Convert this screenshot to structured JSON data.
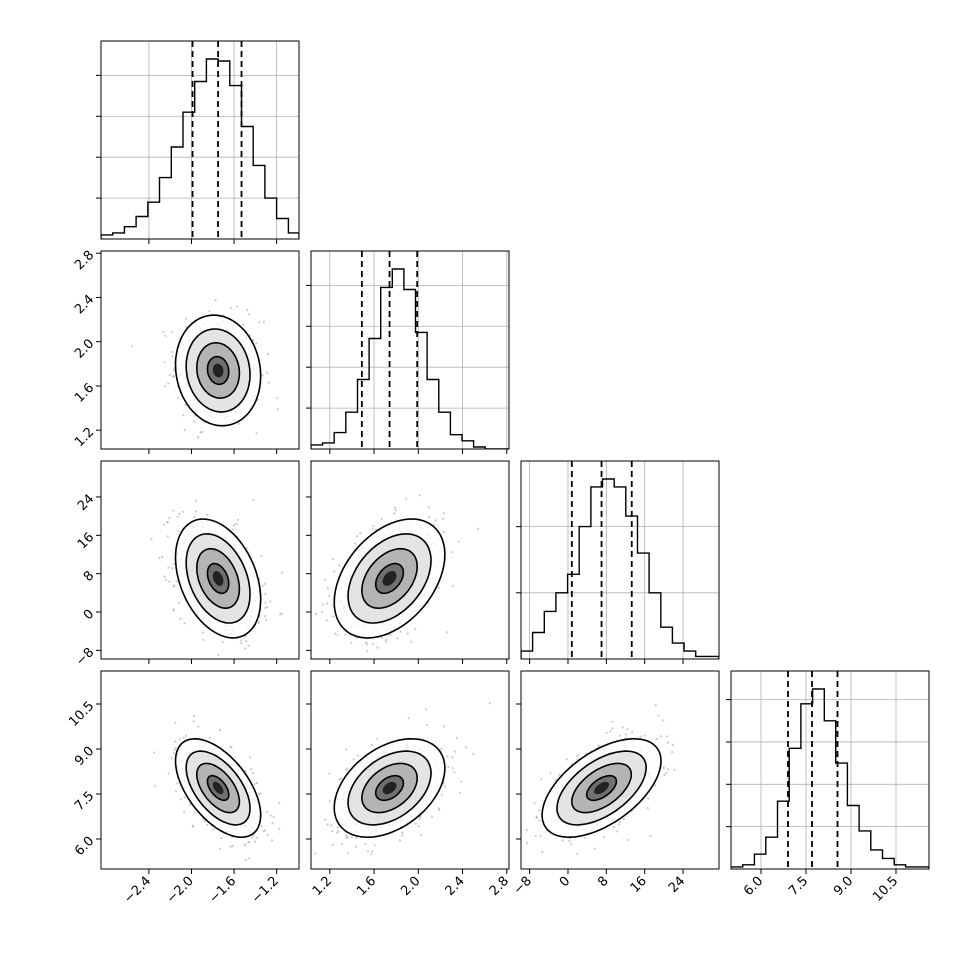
{
  "chart_data": {
    "type": "corner",
    "title": "",
    "parameters": [
      {
        "name": "",
        "range": [
          -2.85,
          -0.99
        ],
        "ticks": [
          -2.4,
          -2.0,
          -1.6,
          -1.2
        ],
        "tick_labels": [
          "−2.4",
          "−2.0",
          "−1.6",
          "−1.2"
        ],
        "quantiles": [
          -1.99,
          -1.75,
          -1.53
        ],
        "histogram": {
          "bin_edges": [
            -2.85,
            -2.74,
            -2.63,
            -2.52,
            -2.41,
            -2.3,
            -2.19,
            -2.08,
            -1.97,
            -1.86,
            -1.75,
            -1.64,
            -1.53,
            -1.42,
            -1.31,
            -1.2,
            -1.09,
            -0.99
          ],
          "counts": [
            2,
            3,
            6,
            11,
            18,
            30,
            45,
            62,
            77,
            88,
            87,
            75,
            55,
            36,
            20,
            10,
            3
          ]
        },
        "mean": -1.75,
        "sd": 0.2
      },
      {
        "name": "",
        "range": [
          1.03,
          2.82
        ],
        "ticks": [
          1.2,
          1.6,
          2.0,
          2.4,
          2.8
        ],
        "tick_labels": [
          "1.2",
          "1.6",
          "2.0",
          "2.4",
          "2.8"
        ],
        "quantiles": [
          1.49,
          1.74,
          1.99
        ],
        "histogram": {
          "bin_edges": [
            1.03,
            1.135,
            1.24,
            1.345,
            1.45,
            1.555,
            1.66,
            1.765,
            1.87,
            1.975,
            2.08,
            2.185,
            2.29,
            2.395,
            2.5,
            2.605,
            2.71,
            2.82
          ],
          "counts": [
            2,
            3,
            8,
            18,
            34,
            54,
            79,
            88,
            78,
            57,
            34,
            18,
            7,
            4,
            1,
            0,
            0
          ]
        },
        "mean": 1.74,
        "sd": 0.25
      },
      {
        "name": "",
        "range": [
          -9.8,
          31.5
        ],
        "ticks": [
          -8,
          0,
          8,
          16,
          24
        ],
        "tick_labels": [
          "−8",
          "0",
          "8",
          "16",
          "24"
        ],
        "quantiles": [
          0.8,
          7.0,
          13.3
        ],
        "histogram": {
          "bin_edges": [
            -9.8,
            -7.37,
            -4.94,
            -2.51,
            -0.08,
            2.35,
            4.78,
            7.21,
            9.64,
            12.07,
            14.5,
            16.93,
            19.36,
            21.79,
            24.22,
            26.65,
            29.08,
            31.5
          ],
          "counts": [
            3,
            10,
            18,
            25,
            32,
            50,
            65,
            68,
            65,
            54,
            40,
            25,
            12,
            6,
            3,
            1,
            1
          ]
        },
        "mean": 7.0,
        "sd": 6.2
      },
      {
        "name": "",
        "range": [
          5.0,
          11.6
        ],
        "ticks": [
          6.0,
          7.5,
          9.0,
          10.5
        ],
        "tick_labels": [
          "6.0",
          "7.5",
          "9.0",
          "10.5"
        ],
        "quantiles": [
          6.9,
          7.7,
          8.55
        ],
        "histogram": {
          "bin_edges": [
            5.0,
            5.39,
            5.78,
            6.16,
            6.55,
            6.94,
            7.33,
            7.72,
            8.11,
            8.49,
            8.88,
            9.27,
            9.66,
            10.05,
            10.44,
            10.82,
            11.21,
            11.6
          ],
          "counts": [
            1,
            2,
            7,
            15,
            32,
            57,
            78,
            85,
            70,
            50,
            30,
            18,
            9,
            5,
            2,
            1,
            1
          ]
        },
        "mean": 7.7,
        "sd": 0.82
      }
    ],
    "correlations": [
      [
        1.0,
        -0.1,
        -0.35,
        -0.55
      ],
      [
        -0.1,
        1.0,
        0.4,
        0.4
      ],
      [
        -0.35,
        0.4,
        1.0,
        0.55
      ],
      [
        -0.55,
        0.4,
        0.55,
        1.0
      ]
    ],
    "contour_levels_sigma": [
      0.5,
      1.0,
      1.5,
      2.0
    ],
    "grid": true,
    "legend": "none",
    "colors": {
      "histogram": "#000000",
      "contour": "#000000",
      "density": "#000000",
      "scatter": "#9e9e9e",
      "grid": "#b0b0b0",
      "axes": "#000000"
    }
  }
}
